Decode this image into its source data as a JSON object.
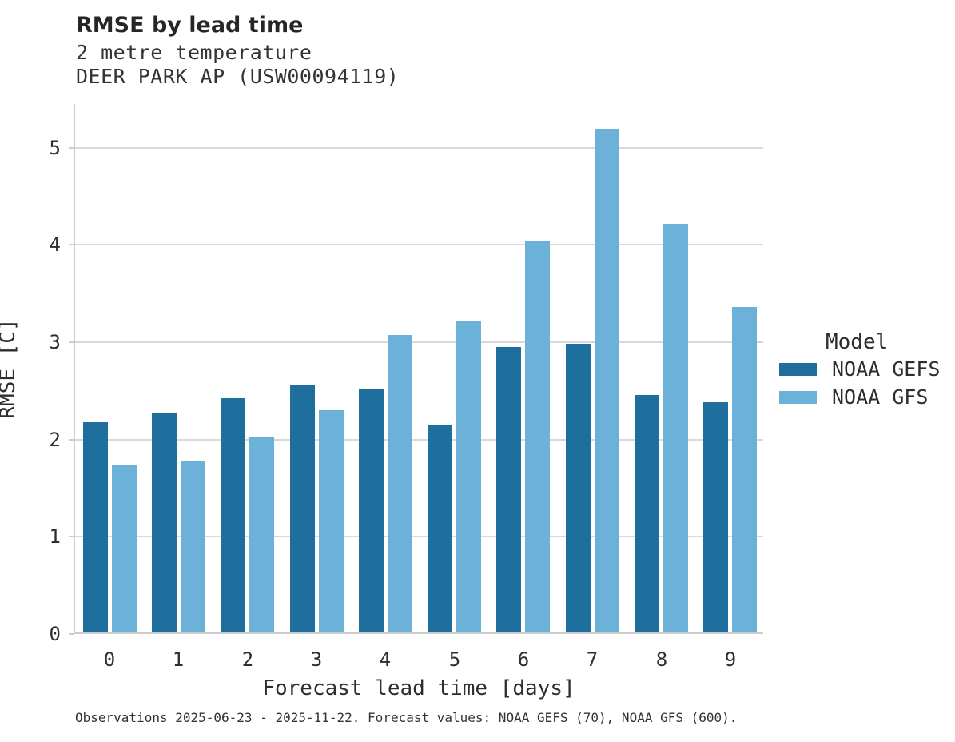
{
  "header": {
    "title": "RMSE by lead time",
    "subtitle1": "2 metre temperature",
    "subtitle2": "DEER PARK AP (USW00094119)"
  },
  "caption": "Observations 2025-06-23 - 2025-11-22. Forecast values: NOAA GEFS (70), NOAA GFS (600).",
  "legend": {
    "title": "Model",
    "entries": [
      {
        "label": "NOAA GEFS",
        "color": "#1e6e9e"
      },
      {
        "label": "NOAA GFS",
        "color": "#6cb1d8"
      }
    ]
  },
  "colors": {
    "gefs_bar": "#1e6e9e",
    "gfs_bar": "#6cb1d8",
    "gridline": "#d9d9d9",
    "axis_spine": "#cccccc",
    "text": "#2e2e2e"
  },
  "chart_data": {
    "type": "bar",
    "title": "RMSE by lead time",
    "subtitle": [
      "2 metre temperature",
      "DEER PARK AP (USW00094119)"
    ],
    "categories": [
      "0",
      "1",
      "2",
      "3",
      "4",
      "5",
      "6",
      "7",
      "8",
      "9"
    ],
    "series": [
      {
        "name": "NOAA GEFS",
        "color": "#1e6e9e",
        "values": [
          2.15,
          2.25,
          2.4,
          2.54,
          2.5,
          2.13,
          2.93,
          2.96,
          2.43,
          2.36
        ]
      },
      {
        "name": "NOAA GFS",
        "color": "#6cb1d8",
        "values": [
          1.71,
          1.76,
          2.0,
          2.28,
          3.05,
          3.2,
          4.02,
          5.17,
          4.19,
          3.34
        ]
      }
    ],
    "xlabel": "Forecast lead time [days]",
    "ylabel": "RMSE [C]",
    "ylim": [
      0,
      5.45
    ],
    "yticks": [
      0,
      1,
      2,
      3,
      4,
      5
    ],
    "grid": true,
    "legend_title": "Model",
    "legend_position": "right"
  }
}
